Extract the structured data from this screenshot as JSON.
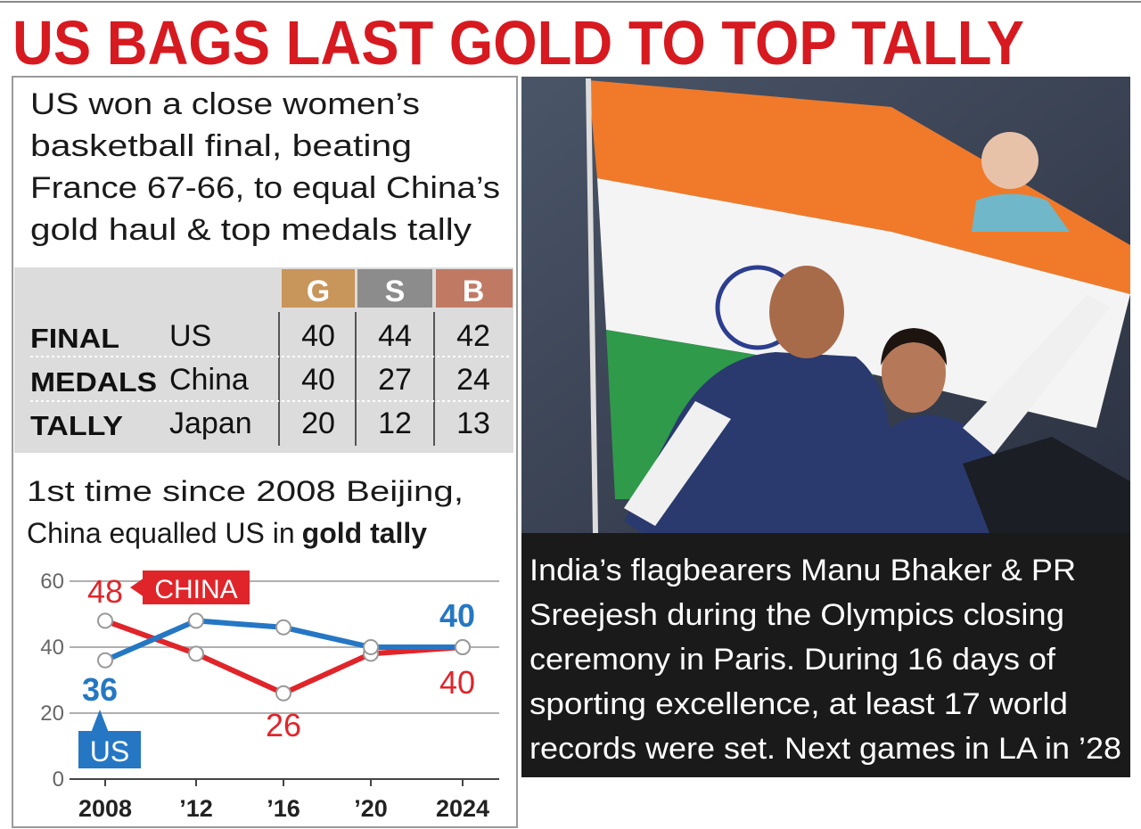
{
  "headline": "US BAGS LAST GOLD TO TOP TALLY",
  "intro": [
    "US won a close women’s",
    "basketball final, beating",
    "France 67-66, to equal China’s",
    "gold haul & top medals tally"
  ],
  "table": {
    "stub": [
      "FINAL",
      "MEDALS",
      "TALLY"
    ],
    "columns": [
      "G",
      "S",
      "B"
    ],
    "rows": [
      {
        "country": "US",
        "medals": [
          40,
          44,
          42
        ]
      },
      {
        "country": "China",
        "medals": [
          40,
          27,
          24
        ]
      },
      {
        "country": "Japan",
        "medals": [
          20,
          12,
          13
        ]
      }
    ]
  },
  "note": {
    "lines": [
      "1st time since 2008 Beijing,",
      "China equalled US in"
    ],
    "emphasis": "gold tally"
  },
  "chart_data": {
    "type": "line",
    "categories": [
      "2008",
      "’12",
      "’16",
      "’20",
      "2024"
    ],
    "series": [
      {
        "name": "CHINA",
        "color": "#e0252a",
        "values": [
          48,
          38,
          26,
          38,
          40
        ]
      },
      {
        "name": "US",
        "color": "#2577c4",
        "values": [
          36,
          48,
          46,
          40,
          40
        ]
      }
    ],
    "ylim": [
      0,
      60
    ],
    "yticks": [
      0,
      20,
      40,
      60
    ],
    "grid": true
  },
  "caption": [
    "India’s flagbearers Manu Bhaker & PR",
    "Sreejesh during the Olympics closing",
    "ceremony in Paris. During 16 days of",
    "sporting excellence, at least 17 world",
    "records were set. Next games in LA in ’28"
  ]
}
